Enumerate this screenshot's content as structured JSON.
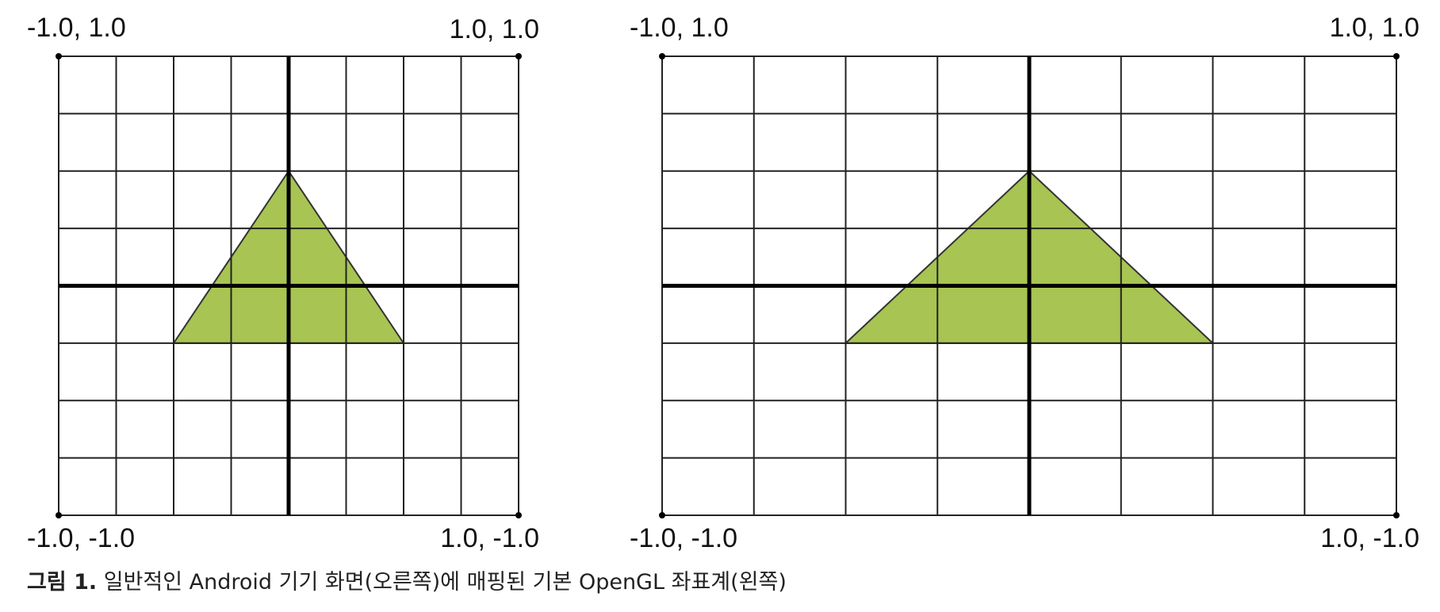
{
  "panels": [
    {
      "corners": {
        "top_left": "-1.0, 1.0",
        "top_right": "1.0, 1.0",
        "bottom_left": "-1.0, -1.0",
        "bottom_right": "1.0, -1.0"
      }
    },
    {
      "corners": {
        "top_left": "-1.0, 1.0",
        "top_right": "1.0, 1.0",
        "bottom_left": "-1.0, -1.0",
        "bottom_right": "1.0, -1.0"
      }
    }
  ],
  "caption": {
    "label": "그림 1.",
    "text": "일반적인 Android 기기 화면(오른쪽)에 매핑된 기본 OpenGL 좌표계(왼쪽)"
  }
}
